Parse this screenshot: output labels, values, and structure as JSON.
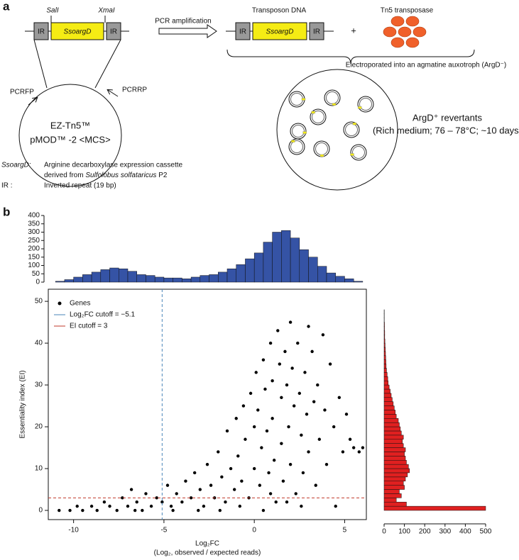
{
  "panel_a": {
    "label": "a",
    "cassette": {
      "sites": [
        "SalI",
        "XmaI"
      ],
      "left_ir": "IR",
      "gene": "SsoargD",
      "right_ir": "IR"
    },
    "primers": [
      "PCRFP",
      "PCRRP"
    ],
    "plasmid": [
      "EZ-Tn5™",
      "pMOD™ -2 <MCS>"
    ],
    "step": "PCR amplification",
    "transposon": {
      "title": "Transposon DNA",
      "left_ir": "IR",
      "gene": "SsoargD",
      "right_ir": "IR"
    },
    "plus": "+",
    "enzyme": "Tn5 transposase",
    "electroporation": "Electroporated into an agmatine auxotroph (ArgD⁻)",
    "result": [
      "ArgD⁺ revertants",
      "(Rich medium; 76 – 78°C; ~10 days)"
    ],
    "key": [
      {
        "term": "SsoargD:",
        "lines": [
          [
            "Arginine decarboxylase expression cassette"
          ],
          [
            "derived from ",
            "Sulfolobus solfataricus",
            " P2"
          ]
        ]
      },
      {
        "term": "IR :",
        "lines": [
          [
            "Inverted repeat (19 bp)"
          ]
        ]
      }
    ]
  },
  "panel_b_label": "b",
  "chart_data": [
    {
      "type": "histogram",
      "orientation": "vertical",
      "color": "#3553a5",
      "bins": [
        -11,
        -10.5,
        -10,
        -9.5,
        -9,
        -8.5,
        -8,
        -7.5,
        -7,
        -6.5,
        -6,
        -5.5,
        -5,
        -4.5,
        -4,
        -3.5,
        -3,
        -2.5,
        -2,
        -1.5,
        -1,
        -0.5,
        0,
        0.5,
        1,
        1.5,
        2,
        2.5,
        3,
        3.5,
        4,
        4.5,
        5,
        5.5,
        6
      ],
      "values": [
        5,
        15,
        30,
        45,
        60,
        75,
        85,
        80,
        65,
        45,
        40,
        30,
        25,
        25,
        20,
        30,
        40,
        45,
        60,
        80,
        105,
        140,
        175,
        240,
        300,
        310,
        265,
        195,
        150,
        95,
        55,
        35,
        20,
        5
      ],
      "xlim": [
        -11.4,
        6.2
      ],
      "ylim": [
        0,
        400
      ],
      "yticks": [
        0,
        50,
        100,
        150,
        200,
        250,
        300,
        350,
        400
      ]
    },
    {
      "type": "scatter",
      "legend": "top-left",
      "xlabel_lines": [
        "Log₂FC",
        "(Log₂, observed / expected reads)"
      ],
      "ylabel": "Essentiality index (EI)",
      "series": [
        {
          "name": "Genes",
          "color": "#000000",
          "x": [
            -10.8,
            -10.2,
            -9.8,
            -9.5,
            -9,
            -8.7,
            -8.3,
            -8,
            -7.6,
            -7.3,
            -7,
            -6.8,
            -6.5,
            -6.2,
            -6,
            -5.7,
            -5.4,
            -5.1,
            -4.8,
            -4.6,
            -4.3,
            -4,
            -3.8,
            -3.5,
            -3.3,
            -3,
            -2.8,
            -2.6,
            -2.4,
            -2.2,
            -2,
            -1.8,
            -1.6,
            -1.5,
            -1.3,
            -1.1,
            -1,
            -0.9,
            -0.7,
            -0.6,
            -0.5,
            -0.3,
            -0.2,
            0,
            0,
            0.1,
            0.2,
            0.3,
            0.4,
            0.5,
            0.6,
            0.7,
            0.8,
            0.9,
            1,
            1,
            1.1,
            1.2,
            1.3,
            1.4,
            1.5,
            1.5,
            1.6,
            1.7,
            1.8,
            1.9,
            2,
            2,
            2.1,
            2.2,
            2.3,
            2.4,
            2.5,
            2.6,
            2.7,
            2.8,
            2.9,
            3,
            3,
            3.2,
            3.3,
            3.4,
            3.5,
            3.6,
            3.8,
            3.9,
            4,
            4.2,
            4.4,
            4.5,
            4.7,
            4.9,
            5.1,
            5.3,
            5.5,
            5.8,
            6,
            -3.1,
            -1.9,
            -0.8,
            0.5,
            1.8,
            -4.5,
            -6.6,
            0.9,
            2.6
          ],
          "values": [
            0,
            0,
            1,
            0,
            1,
            0,
            2,
            1,
            0,
            3,
            1,
            5,
            2,
            0,
            4,
            1,
            3,
            2,
            6,
            1,
            4,
            2,
            7,
            3,
            9,
            5,
            1,
            11,
            6,
            3,
            14,
            8,
            2,
            19,
            10,
            5,
            22,
            13,
            7,
            25,
            17,
            3,
            28,
            20,
            10,
            33,
            24,
            6,
            15,
            36,
            29,
            19,
            9,
            40,
            31,
            22,
            12,
            2,
            43,
            35,
            27,
            16,
            7,
            38,
            30,
            20,
            11,
            45,
            34,
            25,
            4,
            40,
            28,
            18,
            9,
            33,
            23,
            14,
            44,
            38,
            26,
            6,
            30,
            17,
            42,
            24,
            11,
            35,
            20,
            1,
            27,
            14,
            23,
            17,
            15,
            14,
            15,
            0,
            0,
            1,
            0,
            2,
            0,
            0,
            4,
            1
          ]
        }
      ],
      "reference_lines": [
        {
          "name": "Log₂FC cutoff = −5.1",
          "axis": "x",
          "value": -5.1,
          "color": "#4a86b8"
        },
        {
          "name": "EI cutoff = 3",
          "axis": "y",
          "value": 3,
          "color": "#c0392b"
        }
      ],
      "xlim": [
        -11.4,
        6.2
      ],
      "xticks": [
        -10,
        -5,
        0,
        5
      ],
      "ylim": [
        -2.2,
        52.9
      ],
      "yticks": [
        0,
        10,
        20,
        30,
        40,
        50
      ]
    },
    {
      "type": "histogram",
      "orientation": "horizontal",
      "color": "#e02020",
      "bins": [
        0,
        1,
        2,
        3,
        4,
        5,
        6,
        7,
        8,
        9,
        10,
        11,
        12,
        13,
        14,
        15,
        16,
        17,
        18,
        19,
        20,
        21,
        22,
        23,
        24,
        25,
        26,
        27,
        28,
        29,
        30,
        31,
        32,
        33,
        34,
        35,
        36,
        37,
        38,
        39,
        40,
        41,
        42,
        43,
        44,
        45,
        46,
        47,
        48
      ],
      "values": [
        500,
        110,
        60,
        85,
        75,
        100,
        95,
        105,
        115,
        125,
        120,
        110,
        105,
        100,
        105,
        95,
        90,
        95,
        85,
        80,
        75,
        70,
        60,
        55,
        50,
        45,
        40,
        35,
        30,
        25,
        20,
        18,
        15,
        12,
        10,
        9,
        8,
        7,
        6,
        5,
        4,
        3,
        3,
        2,
        2,
        1,
        1,
        1
      ],
      "xlim": [
        0,
        500
      ],
      "xticks": [
        0,
        100,
        200,
        300,
        400,
        500
      ],
      "ylim": [
        -2.2,
        52.9
      ]
    }
  ]
}
